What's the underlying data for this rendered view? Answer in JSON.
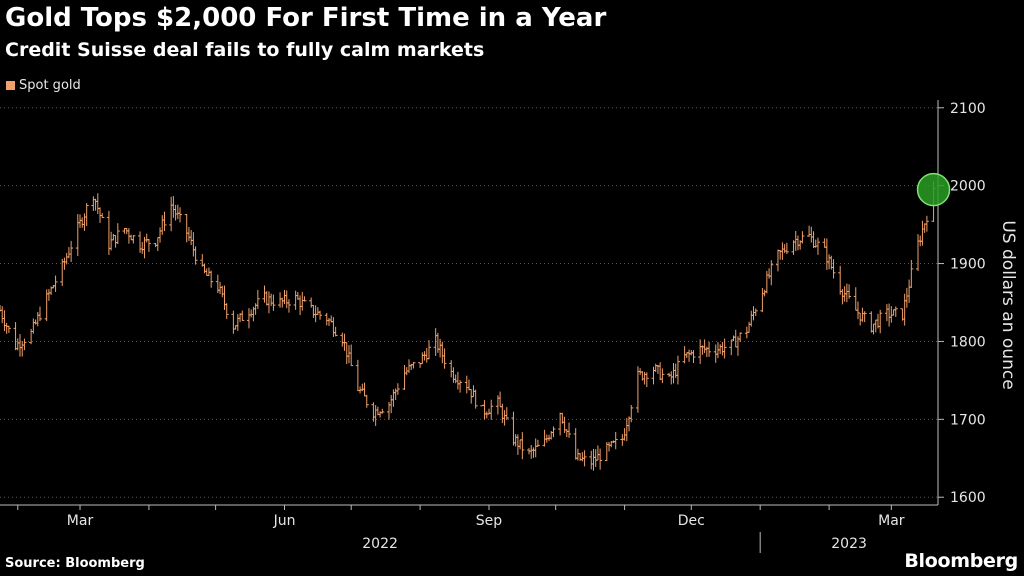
{
  "header": {
    "title": "Gold Tops $2,000 For First Time in a Year",
    "subtitle": "Credit Suisse deal fails to fully calm markets"
  },
  "footer": {
    "source": "Source: Bloomberg",
    "brand": "Bloomberg"
  },
  "colors": {
    "background": "#000000",
    "series": "#f0a06a",
    "grid": "#555555",
    "axis": "#bbbbbb",
    "highlight_fill": "#2a9d23",
    "highlight_stroke": "#7ee36f"
  },
  "chart_data": {
    "type": "line",
    "style": "ohlc-bars",
    "ylabel": "US dollars an ounce",
    "y_axis_side": "right",
    "ylim": [
      1590,
      2110
    ],
    "y_ticks": [
      1600,
      1700,
      1800,
      1900,
      2000,
      2100
    ],
    "grid": "horizontal-dotted",
    "legend_placement": "top-left",
    "x_range": [
      "2022-01-24",
      "2023-03-22"
    ],
    "x_ticks": [
      {
        "date": "2022-03-01",
        "label": "Mar"
      },
      {
        "date": "2022-06-01",
        "label": "Jun"
      },
      {
        "date": "2022-09-01",
        "label": "Sep"
      },
      {
        "date": "2022-12-01",
        "label": "Dec"
      },
      {
        "date": "2023-03-01",
        "label": "Mar"
      }
    ],
    "year_labels": [
      {
        "label": "2022",
        "from": "2022-01-24",
        "to": "2023-01-01"
      },
      {
        "label": "2023",
        "from": "2023-01-01",
        "to": "2023-03-22"
      }
    ],
    "series": [
      {
        "name": "Spot gold",
        "x": [
          "2022-01-24",
          "2022-01-31",
          "2022-02-07",
          "2022-02-14",
          "2022-02-21",
          "2022-02-28",
          "2022-03-07",
          "2022-03-14",
          "2022-03-21",
          "2022-03-28",
          "2022-04-04",
          "2022-04-11",
          "2022-04-18",
          "2022-04-25",
          "2022-05-02",
          "2022-05-09",
          "2022-05-16",
          "2022-05-23",
          "2022-05-30",
          "2022-06-06",
          "2022-06-13",
          "2022-06-20",
          "2022-06-27",
          "2022-07-04",
          "2022-07-11",
          "2022-07-18",
          "2022-07-25",
          "2022-08-01",
          "2022-08-08",
          "2022-08-15",
          "2022-08-22",
          "2022-08-29",
          "2022-09-05",
          "2022-09-12",
          "2022-09-19",
          "2022-09-26",
          "2022-10-03",
          "2022-10-10",
          "2022-10-17",
          "2022-10-24",
          "2022-10-31",
          "2022-11-07",
          "2022-11-14",
          "2022-11-21",
          "2022-11-28",
          "2022-12-05",
          "2022-12-12",
          "2022-12-19",
          "2022-12-26",
          "2023-01-02",
          "2023-01-09",
          "2023-01-16",
          "2023-01-23",
          "2023-01-30",
          "2023-02-06",
          "2023-02-13",
          "2023-02-20",
          "2023-02-27",
          "2023-03-06",
          "2023-03-13",
          "2023-03-20"
        ],
        "values": [
          1840,
          1795,
          1810,
          1855,
          1895,
          1945,
          1990,
          1925,
          1945,
          1925,
          1930,
          1975,
          1940,
          1890,
          1870,
          1820,
          1840,
          1855,
          1850,
          1855,
          1840,
          1830,
          1805,
          1740,
          1710,
          1720,
          1760,
          1775,
          1800,
          1760,
          1745,
          1710,
          1720,
          1675,
          1655,
          1670,
          1710,
          1650,
          1645,
          1660,
          1675,
          1755,
          1765,
          1750,
          1780,
          1790,
          1790,
          1795,
          1815,
          1865,
          1910,
          1930,
          1935,
          1915,
          1870,
          1840,
          1820,
          1835,
          1835,
          1925,
          1990
        ]
      }
    ]
  },
  "annotations": {
    "highlight": {
      "date": "2023-03-20",
      "value": 1995,
      "shape": "circle"
    }
  }
}
